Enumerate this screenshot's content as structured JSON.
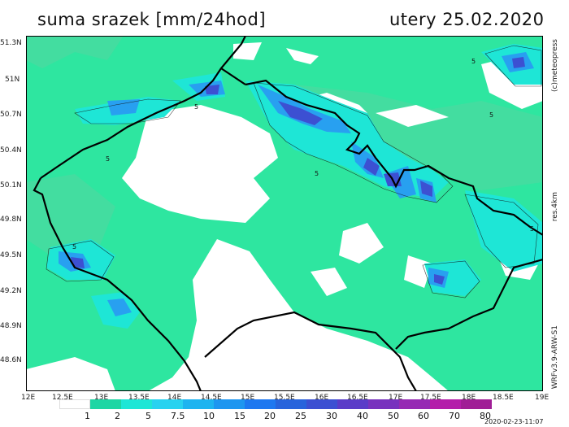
{
  "header": {
    "title": "suma srazek [mm/24hod]",
    "date": "utery 25.02.2020"
  },
  "side": {
    "copyright": "(c)meteopress",
    "resolution": "res.4km",
    "model": "WRFv3.9-ARW-S1"
  },
  "footer": {
    "timestamp": "2020-02-23-11:07"
  },
  "axes": {
    "lat_labels": [
      "51.3N",
      "51N",
      "50.7N",
      "50.4N",
      "50.1N",
      "49.8N",
      "49.5N",
      "49.2N",
      "48.9N",
      "48.6N"
    ],
    "lon_labels": [
      "12E",
      "12.5E",
      "13E",
      "13.5E",
      "14E",
      "14.5E",
      "15E",
      "15.5E",
      "16E",
      "16.5E",
      "17E",
      "17.5E",
      "18E",
      "18.5E",
      "19E"
    ]
  },
  "contour_labels": [
    "5",
    "5",
    "5",
    "5",
    "5",
    "5",
    "5"
  ],
  "legend": {
    "labels": [
      "1",
      "2",
      "5",
      "7.5",
      "10",
      "15",
      "20",
      "25",
      "30",
      "40",
      "50",
      "60",
      "70",
      "80"
    ],
    "colors": [
      "#ffffff",
      "#1ed6a4",
      "#1ee6d6",
      "#28d2f0",
      "#1eb4f0",
      "#1e96f0",
      "#1e78f0",
      "#2864dc",
      "#3c50d2",
      "#5a3cc8",
      "#7832be",
      "#962ab4",
      "#b41eaa",
      "#a01e96",
      "#7a1e82"
    ]
  },
  "colors": {
    "base": "#2ee6a0",
    "light": "#46dca0",
    "white": "#ffffff",
    "border": "#000000"
  }
}
